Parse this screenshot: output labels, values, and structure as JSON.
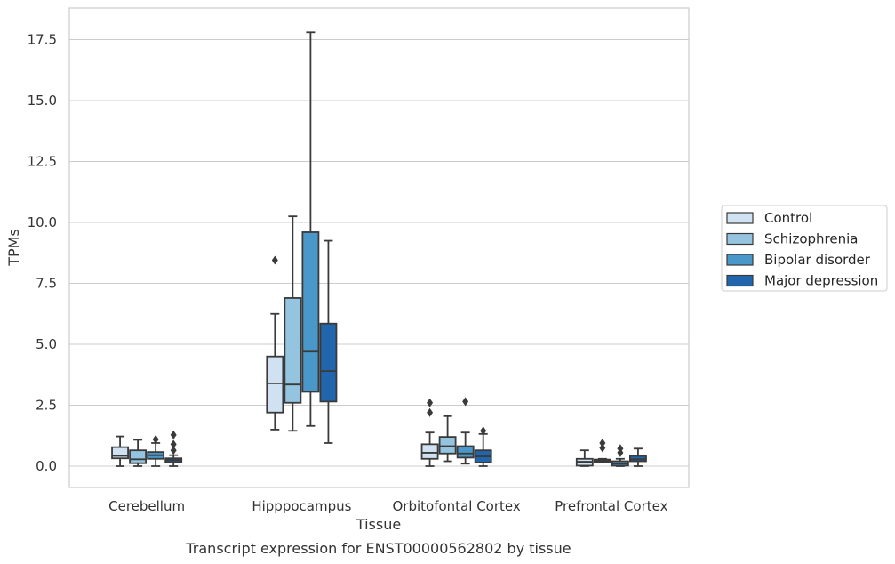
{
  "caption": "Transcript expression for ENST00000562802 by tissue",
  "chart_data": {
    "type": "box",
    "xlabel": "Tissue",
    "ylabel": "TPMs",
    "ylim": [
      -0.85,
      18.7
    ],
    "yticks": [
      0.0,
      2.5,
      5.0,
      7.5,
      10.0,
      12.5,
      15.0,
      17.5
    ],
    "ytick_labels": [
      "0.0",
      "2.5",
      "5.0",
      "7.5",
      "10.0",
      "12.5",
      "15.0",
      "17.5"
    ],
    "grid": "horizontal",
    "legend_position": "right",
    "categories": [
      "Cerebellum",
      "Hipppocampus",
      "Orbitofontal Cortex",
      "Prefrontal Cortex"
    ],
    "series": [
      {
        "name": "Control",
        "color": "#d0e1f2",
        "boxes": [
          {
            "whisker_low": 0.0,
            "q1": 0.32,
            "median": 0.42,
            "q3": 0.78,
            "whisker_high": 1.22,
            "outliers": []
          },
          {
            "whisker_low": 1.5,
            "q1": 2.2,
            "median": 3.4,
            "q3": 4.5,
            "whisker_high": 6.25,
            "outliers": [
              8.45
            ]
          },
          {
            "whisker_low": 0.0,
            "q1": 0.3,
            "median": 0.55,
            "q3": 0.9,
            "whisker_high": 1.38,
            "outliers": [
              2.2,
              2.6
            ]
          },
          {
            "whisker_low": 0.0,
            "q1": 0.02,
            "median": 0.18,
            "q3": 0.3,
            "whisker_high": 0.65,
            "outliers": []
          }
        ]
      },
      {
        "name": "Schizophrenia",
        "color": "#94c4df",
        "boxes": [
          {
            "whisker_low": 0.0,
            "q1": 0.12,
            "median": 0.28,
            "q3": 0.65,
            "whisker_high": 1.08,
            "outliers": []
          },
          {
            "whisker_low": 1.45,
            "q1": 2.6,
            "median": 3.35,
            "q3": 6.9,
            "whisker_high": 10.25,
            "outliers": []
          },
          {
            "whisker_low": 0.2,
            "q1": 0.52,
            "median": 0.82,
            "q3": 1.2,
            "whisker_high": 2.05,
            "outliers": []
          },
          {
            "whisker_low": 0.15,
            "q1": 0.18,
            "median": 0.22,
            "q3": 0.27,
            "whisker_high": 0.3,
            "outliers": [
              0.75,
              0.95
            ]
          }
        ]
      },
      {
        "name": "Bipolar disorder",
        "color": "#4a98c9",
        "boxes": [
          {
            "whisker_low": 0.0,
            "q1": 0.3,
            "median": 0.45,
            "q3": 0.58,
            "whisker_high": 0.95,
            "outliers": [
              1.1
            ]
          },
          {
            "whisker_low": 1.65,
            "q1": 3.05,
            "median": 4.7,
            "q3": 9.6,
            "whisker_high": 17.8,
            "outliers": []
          },
          {
            "whisker_low": 0.1,
            "q1": 0.35,
            "median": 0.52,
            "q3": 0.82,
            "whisker_high": 1.38,
            "outliers": [
              2.65
            ]
          },
          {
            "whisker_low": 0.0,
            "q1": 0.02,
            "median": 0.1,
            "q3": 0.2,
            "whisker_high": 0.3,
            "outliers": [
              0.55,
              0.72
            ]
          }
        ]
      },
      {
        "name": "Major depression",
        "color": "#2166ac",
        "boxes": [
          {
            "whisker_low": 0.0,
            "q1": 0.17,
            "median": 0.25,
            "q3": 0.32,
            "whisker_high": 0.45,
            "outliers": [
              0.65,
              0.9,
              1.28
            ]
          },
          {
            "whisker_low": 0.95,
            "q1": 2.65,
            "median": 3.9,
            "q3": 5.85,
            "whisker_high": 9.25,
            "outliers": []
          },
          {
            "whisker_low": 0.0,
            "q1": 0.15,
            "median": 0.4,
            "q3": 0.65,
            "whisker_high": 1.32,
            "outliers": [
              1.45
            ]
          },
          {
            "whisker_low": 0.0,
            "q1": 0.2,
            "median": 0.28,
            "q3": 0.42,
            "whisker_high": 0.72,
            "outliers": []
          }
        ]
      }
    ]
  }
}
